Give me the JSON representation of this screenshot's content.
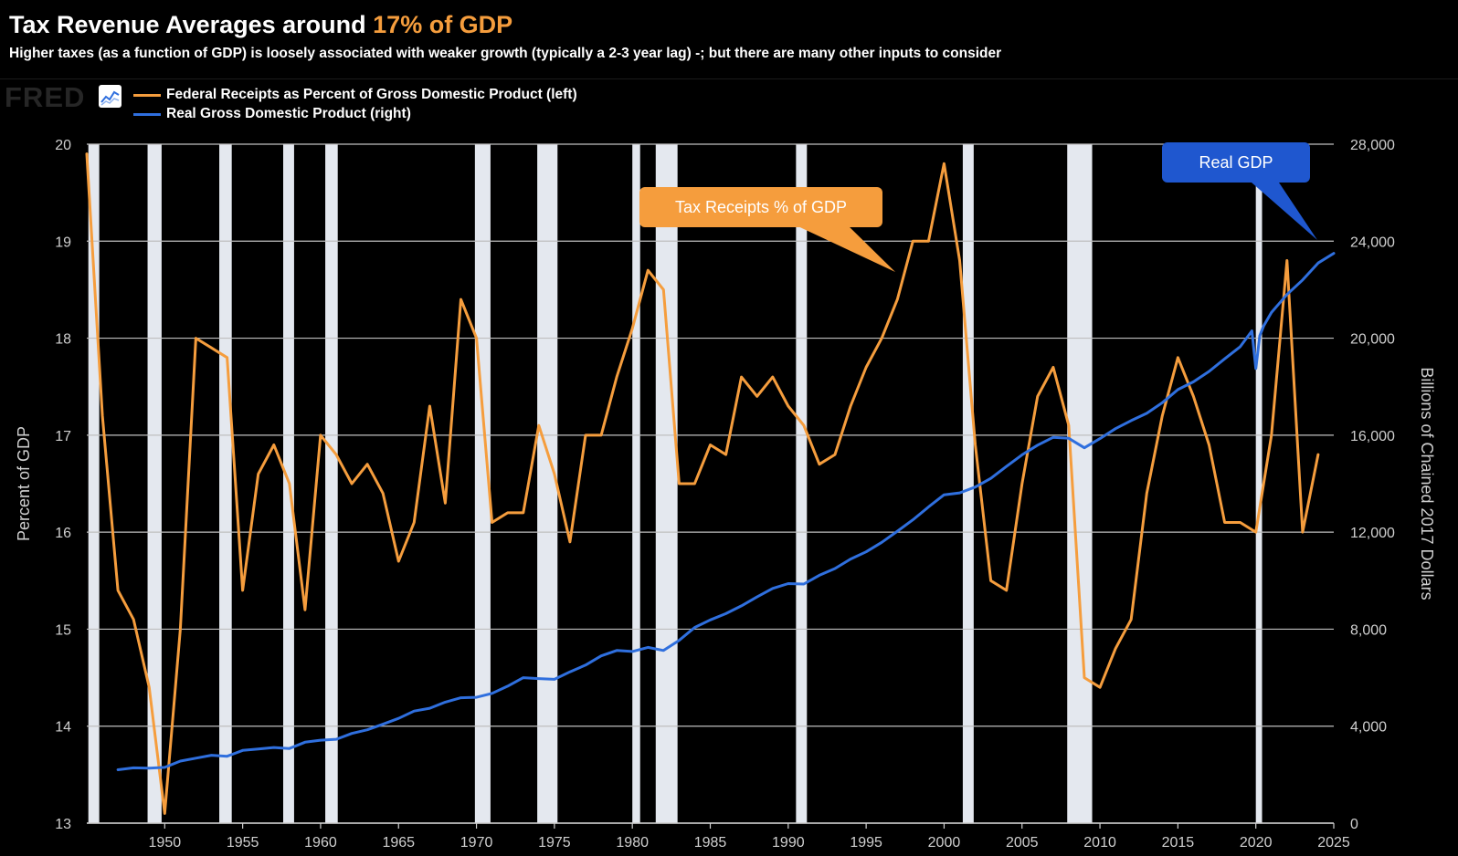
{
  "header": {
    "title_main": "Tax Revenue Averages around ",
    "title_highlight": "17% of GDP",
    "subtitle": "Higher taxes (as a function of GDP) is loosely associated with weaker growth (typically a 2-3 year lag) -; but there are many other inputs to consider"
  },
  "brand": {
    "logo_text": "FRED"
  },
  "callouts": {
    "tax": "Tax Receipts % of GDP",
    "gdp": "Real GDP"
  },
  "colors": {
    "tax": "#f59d3d",
    "gdp": "#2f6fde",
    "gdp_callout": "#1f57cf",
    "recession": "#e4e8ef",
    "grid": "#bfbfbf",
    "background": "#000000"
  },
  "chart_data": {
    "type": "line",
    "xlim": [
      1945,
      2025
    ],
    "x_ticks": [
      1950,
      1955,
      1960,
      1965,
      1970,
      1975,
      1980,
      1985,
      1990,
      1995,
      2000,
      2005,
      2010,
      2015,
      2020,
      2025
    ],
    "left_axis": {
      "label": "Percent of GDP",
      "ylim": [
        13,
        20
      ],
      "ticks": [
        13,
        14,
        15,
        16,
        17,
        18,
        19,
        20
      ]
    },
    "right_axis": {
      "label": "Billions of Chained 2017 Dollars",
      "ylim": [
        0,
        28000
      ],
      "ticks": [
        "0",
        "4,000",
        "8,000",
        "12,000",
        "16,000",
        "20,000",
        "24,000",
        "28,000"
      ]
    },
    "grid": true,
    "legend_position": "top-left",
    "series": [
      {
        "name": "Federal Receipts as Percent of Gross Domestic Product (left)",
        "axis": "left",
        "x": [
          1945,
          1946,
          1947,
          1948,
          1949,
          1950,
          1951,
          1952,
          1953,
          1954,
          1955,
          1956,
          1957,
          1958,
          1959,
          1960,
          1961,
          1962,
          1963,
          1964,
          1965,
          1966,
          1967,
          1968,
          1969,
          1970,
          1971,
          1972,
          1973,
          1974,
          1975,
          1976,
          1977,
          1978,
          1979,
          1980,
          1981,
          1982,
          1983,
          1984,
          1985,
          1986,
          1987,
          1988,
          1989,
          1990,
          1991,
          1992,
          1993,
          1994,
          1995,
          1996,
          1997,
          1998,
          1999,
          2000,
          2001,
          2002,
          2003,
          2004,
          2005,
          2006,
          2007,
          2008,
          2009,
          2010,
          2011,
          2012,
          2013,
          2014,
          2015,
          2016,
          2017,
          2018,
          2019,
          2020,
          2021,
          2022,
          2023,
          2024
        ],
        "values": [
          19.9,
          17.2,
          15.4,
          15.1,
          14.4,
          13.1,
          15.0,
          18.0,
          17.9,
          17.8,
          15.4,
          16.6,
          16.9,
          16.5,
          15.2,
          17.0,
          16.8,
          16.5,
          16.7,
          16.4,
          15.7,
          16.1,
          17.3,
          16.3,
          18.4,
          18.0,
          16.1,
          16.2,
          16.2,
          17.1,
          16.6,
          15.9,
          17.0,
          17.0,
          17.6,
          18.1,
          18.7,
          18.5,
          16.5,
          16.5,
          16.9,
          16.8,
          17.6,
          17.4,
          17.6,
          17.3,
          17.1,
          16.7,
          16.8,
          17.3,
          17.7,
          18.0,
          18.4,
          19.0,
          19.0,
          19.8,
          18.8,
          16.9,
          15.5,
          15.4,
          16.5,
          17.4,
          17.7,
          17.1,
          14.5,
          14.4,
          14.8,
          15.1,
          16.4,
          17.2,
          17.8,
          17.4,
          16.9,
          16.1,
          16.1,
          16.0,
          17.0,
          18.8,
          16.0,
          16.8
        ]
      },
      {
        "name": "Real Gross Domestic Product (right)",
        "axis": "right",
        "x": [
          1947,
          1948,
          1949,
          1950,
          1951,
          1952,
          1953,
          1954,
          1955,
          1956,
          1957,
          1958,
          1959,
          1960,
          1961,
          1962,
          1963,
          1964,
          1965,
          1966,
          1967,
          1968,
          1969,
          1970,
          1971,
          1972,
          1973,
          1974,
          1975,
          1976,
          1977,
          1978,
          1979,
          1980,
          1981,
          1982,
          1983,
          1984,
          1985,
          1986,
          1987,
          1988,
          1989,
          1990,
          1991,
          1992,
          1993,
          1994,
          1995,
          1996,
          1997,
          1998,
          1999,
          2000,
          2001,
          2002,
          2003,
          2004,
          2005,
          2006,
          2007,
          2008,
          2009,
          2010,
          2011,
          2012,
          2013,
          2014,
          2015,
          2016,
          2017,
          2018,
          2019,
          2019.75,
          2020,
          2020.25,
          2020.5,
          2021,
          2022,
          2023,
          2024,
          2025
        ],
        "values": [
          2200,
          2280,
          2270,
          2300,
          2560,
          2680,
          2800,
          2760,
          3000,
          3060,
          3120,
          3080,
          3340,
          3420,
          3460,
          3700,
          3850,
          4080,
          4320,
          4620,
          4740,
          4990,
          5170,
          5190,
          5350,
          5650,
          6000,
          5960,
          5930,
          6240,
          6520,
          6900,
          7120,
          7080,
          7250,
          7120,
          7540,
          8070,
          8380,
          8640,
          8960,
          9330,
          9680,
          9880,
          9860,
          10220,
          10500,
          10890,
          11190,
          11580,
          12040,
          12510,
          13040,
          13540,
          13620,
          13860,
          14220,
          14710,
          15190,
          15590,
          15910,
          15870,
          15480,
          15860,
          16270,
          16600,
          16900,
          17340,
          17880,
          18200,
          18630,
          19150,
          19650,
          20300,
          18750,
          20100,
          20500,
          21060,
          21800,
          22400,
          23100,
          23500
        ]
      }
    ],
    "recessions": [
      [
        1945.1,
        1945.8
      ],
      [
        1948.9,
        1949.8
      ],
      [
        1953.5,
        1954.3
      ],
      [
        1957.6,
        1958.3
      ],
      [
        1960.3,
        1961.1
      ],
      [
        1969.9,
        1970.9
      ],
      [
        1973.9,
        1975.2
      ],
      [
        1980.0,
        1980.5
      ],
      [
        1981.5,
        1982.9
      ],
      [
        1990.5,
        1991.2
      ],
      [
        2001.2,
        2001.9
      ],
      [
        2007.9,
        2009.5
      ],
      [
        2020.0,
        2020.4
      ]
    ]
  }
}
